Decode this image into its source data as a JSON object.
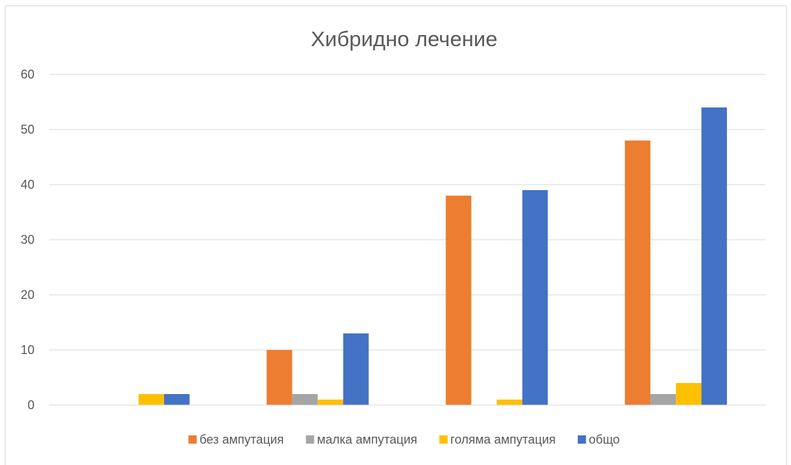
{
  "chart_data": {
    "type": "bar",
    "title": "Хибридно лечение",
    "xlabel": "",
    "ylabel": "",
    "categories": [
      "",
      "",
      "",
      ""
    ],
    "ylim": [
      0,
      60
    ],
    "yticks": [
      0,
      10,
      20,
      30,
      40,
      50,
      60
    ],
    "grid": true,
    "legend_position": "bottom",
    "series": [
      {
        "name": "без ампутация",
        "color": "#ED7D31",
        "values": [
          0,
          10,
          38,
          48
        ]
      },
      {
        "name": "малка ампутация",
        "color": "#A5A5A5",
        "values": [
          0,
          2,
          0,
          2
        ]
      },
      {
        "name": "голяма ампутация",
        "color": "#FFC000",
        "values": [
          2,
          1,
          1,
          4
        ]
      },
      {
        "name": "общо",
        "color": "#4472C4",
        "values": [
          2,
          13,
          39,
          54
        ]
      }
    ]
  }
}
